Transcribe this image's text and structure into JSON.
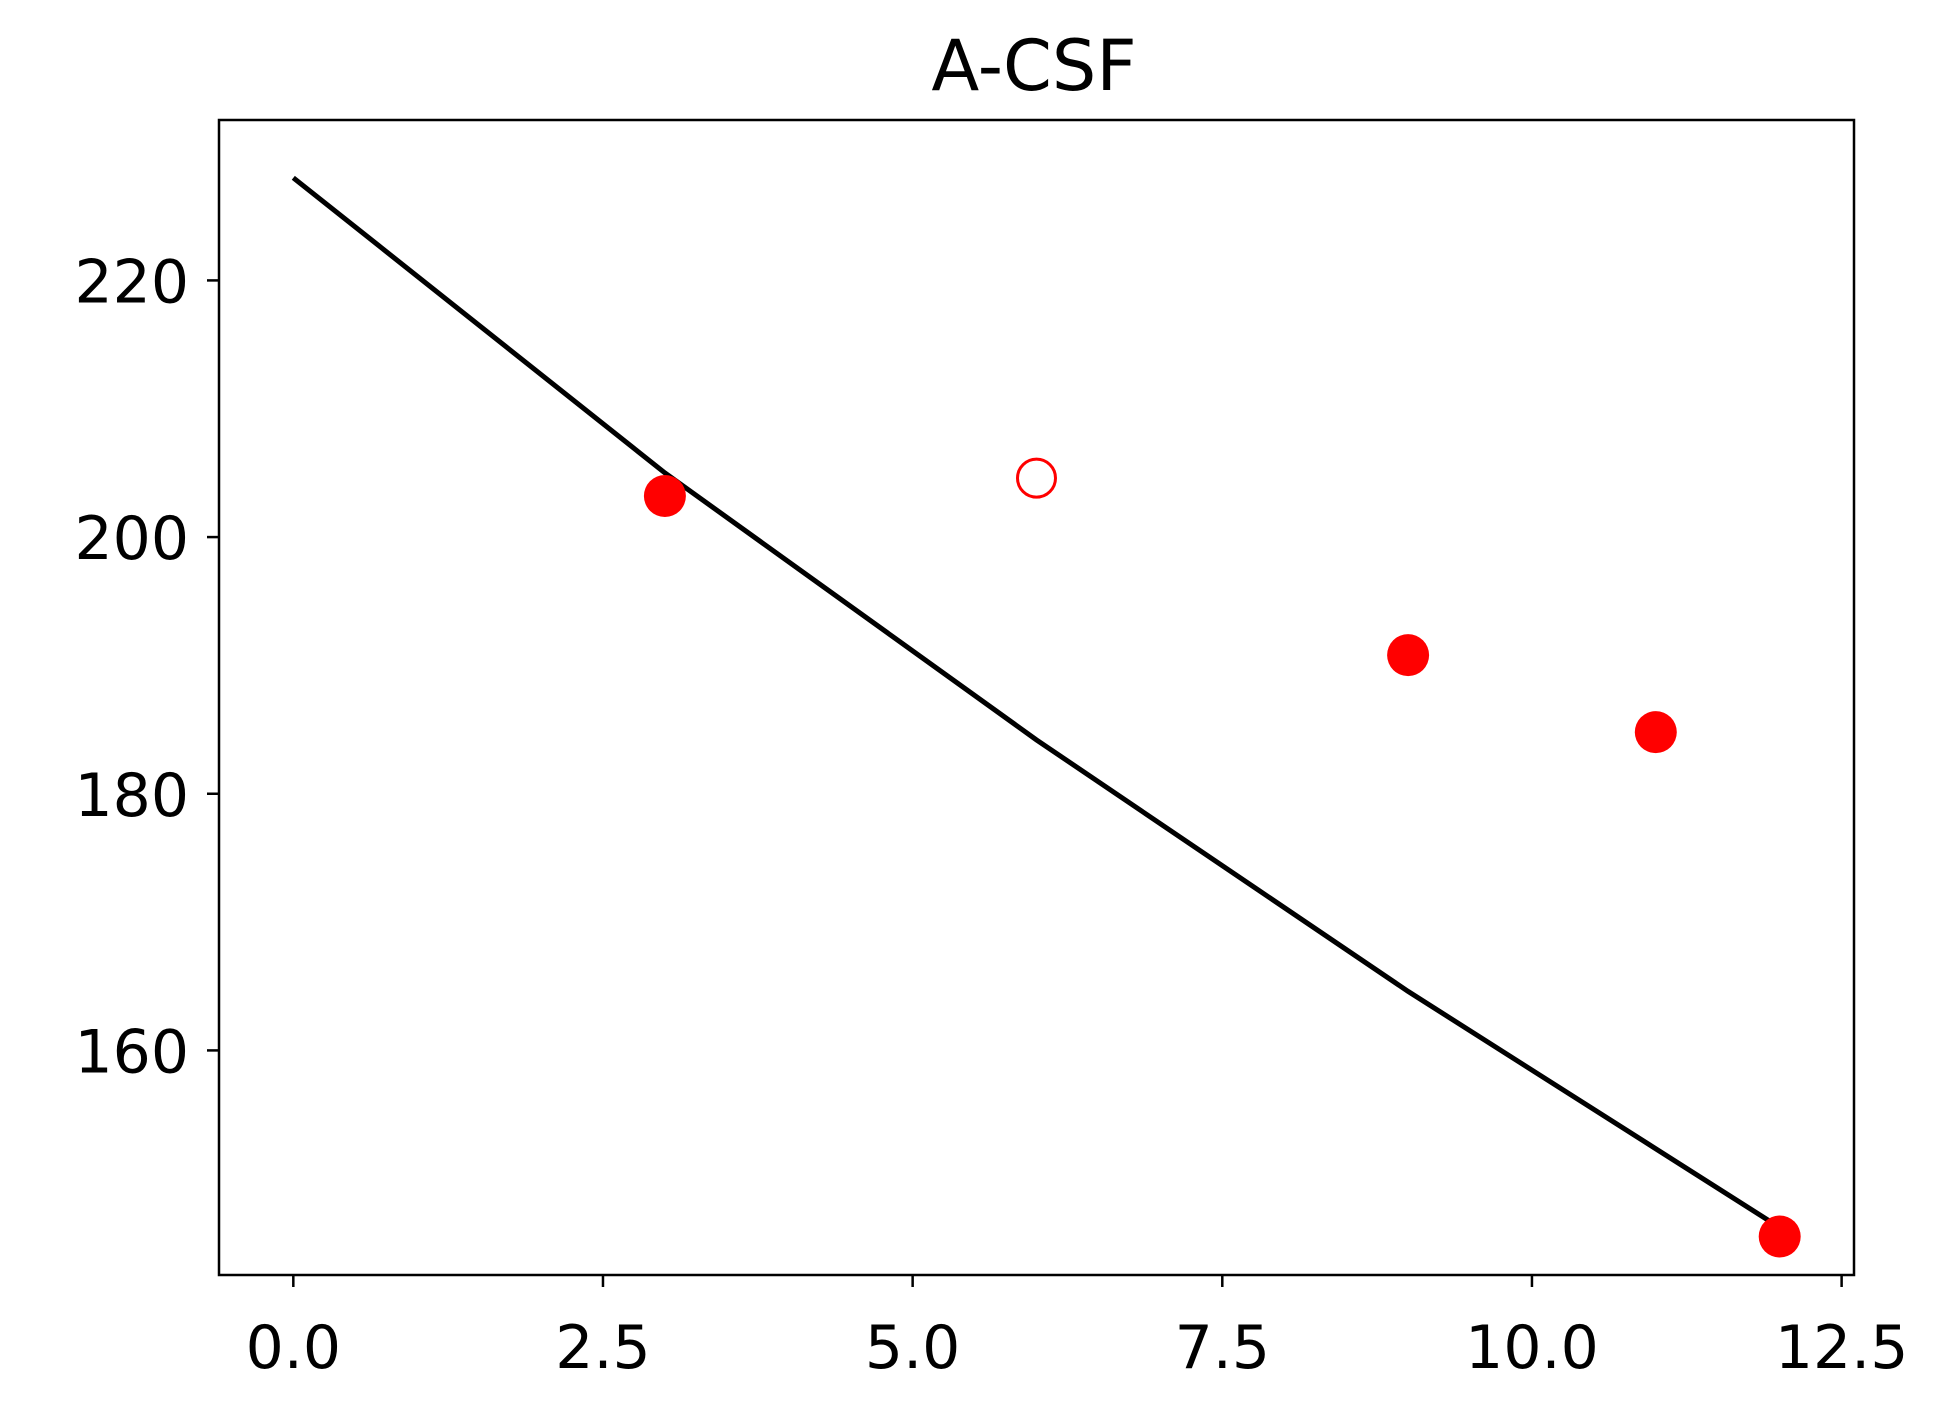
{
  "chart_data": {
    "type": "scatter",
    "title": "A-CSF",
    "xlabel": "",
    "ylabel": "",
    "xlim": [
      -0.6,
      12.6
    ],
    "ylim": [
      142.5,
      232.5
    ],
    "xticks": [
      0.0,
      2.5,
      5.0,
      7.5,
      10.0,
      12.5
    ],
    "xtick_labels": [
      "0.0",
      "2.5",
      "5.0",
      "7.5",
      "10.0",
      "12.5"
    ],
    "yticks": [
      160,
      180,
      200,
      220
    ],
    "ytick_labels": [
      "160",
      "180",
      "200",
      "220"
    ],
    "grid": false,
    "legend": "none",
    "series": [
      {
        "kind": "points",
        "style": "filled",
        "color": "#ff0000",
        "x": [
          3,
          9,
          11,
          12
        ],
        "y": [
          203.2,
          190.8,
          184.8,
          145.5
        ]
      },
      {
        "kind": "points",
        "style": "hollow",
        "color": "#ff0000",
        "x": [
          6
        ],
        "y": [
          204.6
        ]
      },
      {
        "kind": "line",
        "color": "#000000",
        "x": [
          0,
          3,
          6,
          9,
          12
        ],
        "y": [
          228.0,
          205.0,
          184.2,
          164.6,
          146.2
        ]
      }
    ]
  }
}
